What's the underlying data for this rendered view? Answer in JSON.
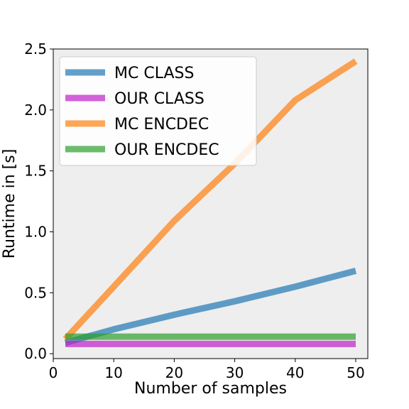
{
  "chart_data": {
    "type": "line",
    "xlabel": "Number of samples",
    "ylabel": "Runtime in [s]",
    "xlim": [
      0,
      52
    ],
    "ylim": [
      -0.04,
      2.5
    ],
    "xticks": [
      0,
      10,
      20,
      30,
      40,
      50
    ],
    "yticks": [
      0.0,
      0.5,
      1.0,
      1.5,
      2.0,
      2.5
    ],
    "xtick_labels": [
      "0",
      "10",
      "20",
      "30",
      "40",
      "50"
    ],
    "ytick_labels": [
      "0.0",
      "0.5",
      "1.0",
      "1.5",
      "2.0",
      "2.5"
    ],
    "grid": false,
    "legend_position": "top-left",
    "background": "#eeeeee",
    "series": [
      {
        "name": "MC CLASS",
        "color": "#1f77b4",
        "x": [
          2,
          10,
          20,
          30,
          40,
          50
        ],
        "y": [
          0.09,
          0.2,
          0.32,
          0.43,
          0.55,
          0.68
        ]
      },
      {
        "name": "OUR CLASS",
        "color": "#bf1fc8",
        "x": [
          2,
          50
        ],
        "y": [
          0.08,
          0.08
        ]
      },
      {
        "name": "MC ENCDEC",
        "color": "#ff7f0e",
        "x": [
          2,
          10,
          20,
          30,
          40,
          50
        ],
        "y": [
          0.12,
          0.55,
          1.09,
          1.56,
          2.08,
          2.4
        ]
      },
      {
        "name": "OUR ENCDEC",
        "color": "#2ca02c",
        "x": [
          2,
          50
        ],
        "y": [
          0.14,
          0.14
        ]
      }
    ]
  }
}
